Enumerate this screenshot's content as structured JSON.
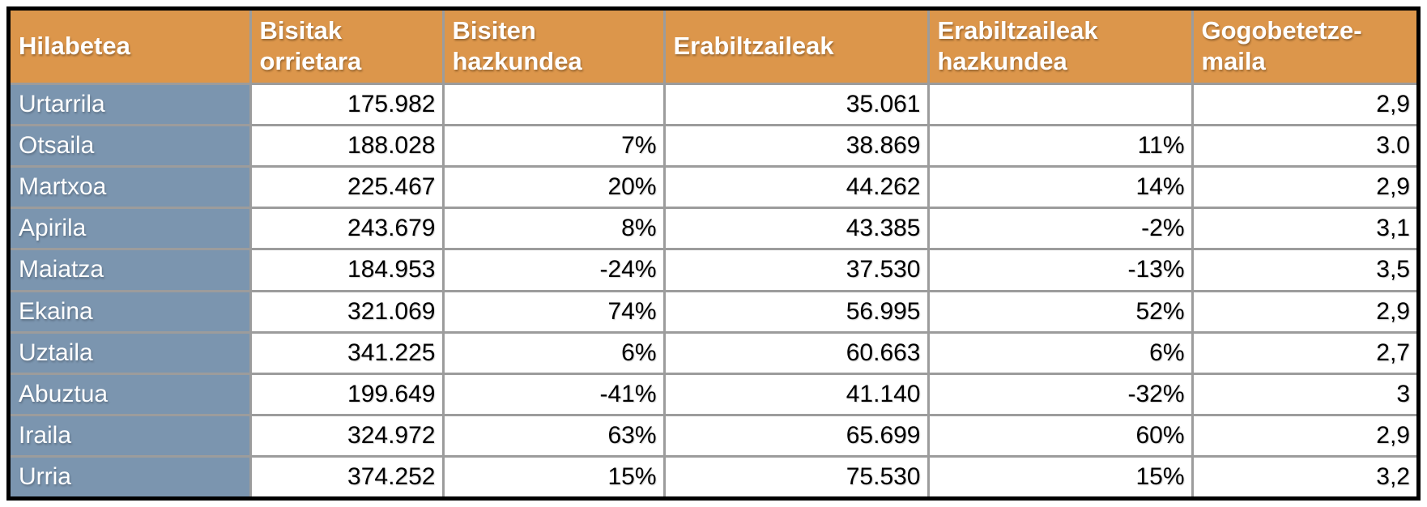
{
  "colors": {
    "header_bg": "#dc964b",
    "header_text": "#ffffff",
    "month_col_bg": "#7b95af",
    "month_col_text": "#ffffff",
    "cell_bg": "#ffffff",
    "cell_text": "#000000",
    "gridline": "#9c9c9c",
    "outer_border": "#000000"
  },
  "chart_data": {
    "type": "table",
    "columns": [
      "Hilabetea",
      "Bisitak orrietara",
      "Bisiten hazkundea",
      "Erabiltzaileak",
      "Erabiltzaileak hazkundea",
      "Gogobetetze-maila"
    ],
    "rows": [
      [
        "Urtarrila",
        "175.982",
        "",
        "35.061",
        "",
        "2,9"
      ],
      [
        "Otsaila",
        "188.028",
        "7%",
        "38.869",
        "11%",
        "3.0"
      ],
      [
        "Martxoa",
        "225.467",
        "20%",
        "44.262",
        "14%",
        "2,9"
      ],
      [
        "Apirila",
        "243.679",
        "8%",
        "43.385",
        "-2%",
        "3,1"
      ],
      [
        "Maiatza",
        "184.953",
        "-24%",
        "37.530",
        "-13%",
        "3,5"
      ],
      [
        "Ekaina",
        "321.069",
        "74%",
        "56.995",
        "52%",
        "2,9"
      ],
      [
        "Uztaila",
        "341.225",
        "6%",
        "60.663",
        "6%",
        "2,7"
      ],
      [
        "Abuztua",
        "199.649",
        "-41%",
        "41.140",
        "-32%",
        "3"
      ],
      [
        "Iraila",
        "324.972",
        "63%",
        "65.699",
        "60%",
        "2,9"
      ],
      [
        "Urria",
        "374.252",
        "15%",
        "75.530",
        "15%",
        "3,2"
      ]
    ]
  }
}
